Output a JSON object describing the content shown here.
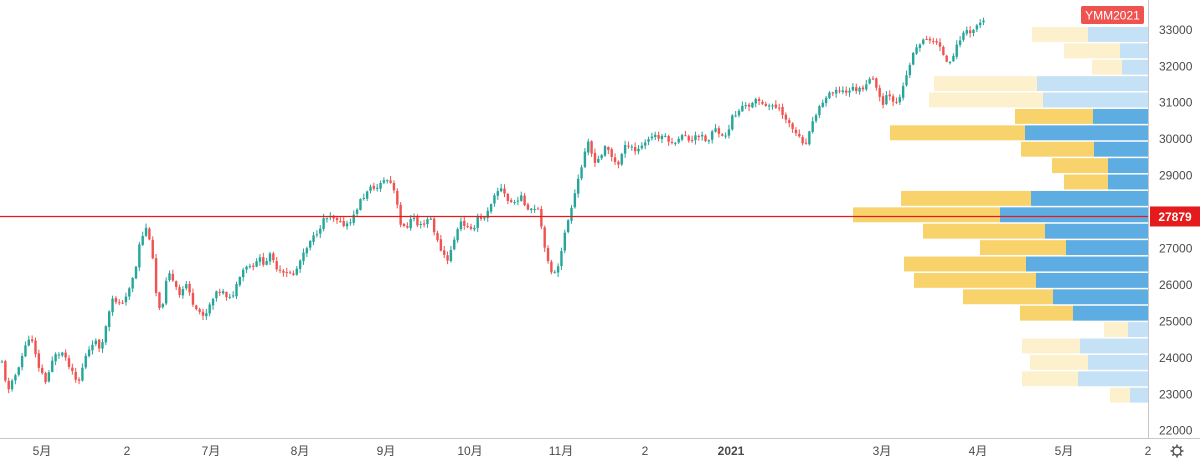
{
  "chart_data": {
    "type": "candlestick",
    "symbol_badge": "YMM2021",
    "last_price_label": "27879",
    "last_price": 27879,
    "y_range": [
      21800,
      33600
    ],
    "y_ticks": [
      22000,
      23000,
      24000,
      25000,
      26000,
      27000,
      28000,
      29000,
      30000,
      31000,
      32000,
      33000
    ],
    "x_labels": [
      {
        "label": "5月",
        "bold": false
      },
      {
        "label": "2",
        "bold": false
      },
      {
        "label": "7月",
        "bold": false
      },
      {
        "label": "8月",
        "bold": false
      },
      {
        "label": "9月",
        "bold": false
      },
      {
        "label": "10月",
        "bold": false
      },
      {
        "label": "11月",
        "bold": false
      },
      {
        "label": "2",
        "bold": false
      },
      {
        "label": "2021",
        "bold": true
      },
      {
        "label": "3月",
        "bold": false
      },
      {
        "label": "4月",
        "bold": false
      },
      {
        "label": "5月",
        "bold": false
      },
      {
        "label": "2",
        "bold": false
      }
    ],
    "close_path": [
      [
        0,
        24150
      ],
      [
        8,
        23050
      ],
      [
        15,
        23500
      ],
      [
        22,
        24050
      ],
      [
        30,
        24650
      ],
      [
        38,
        23800
      ],
      [
        46,
        23350
      ],
      [
        54,
        24050
      ],
      [
        62,
        24150
      ],
      [
        70,
        23700
      ],
      [
        78,
        23250
      ],
      [
        86,
        24100
      ],
      [
        94,
        24500
      ],
      [
        100,
        24250
      ],
      [
        106,
        24850
      ],
      [
        112,
        25700
      ],
      [
        118,
        25400
      ],
      [
        124,
        25600
      ],
      [
        130,
        25900
      ],
      [
        136,
        26500
      ],
      [
        140,
        27200
      ],
      [
        146,
        27550
      ],
      [
        150,
        27250
      ],
      [
        154,
        26400
      ],
      [
        158,
        25200
      ],
      [
        163,
        25550
      ],
      [
        168,
        26350
      ],
      [
        174,
        26100
      ],
      [
        180,
        25750
      ],
      [
        186,
        26050
      ],
      [
        192,
        25550
      ],
      [
        198,
        25350
      ],
      [
        204,
        25050
      ],
      [
        210,
        25450
      ],
      [
        216,
        25750
      ],
      [
        222,
        25850
      ],
      [
        228,
        25550
      ],
      [
        234,
        25800
      ],
      [
        240,
        26300
      ],
      [
        246,
        26550
      ],
      [
        252,
        26500
      ],
      [
        258,
        26750
      ],
      [
        264,
        26600
      ],
      [
        270,
        26800
      ],
      [
        276,
        26500
      ],
      [
        282,
        26400
      ],
      [
        288,
        26350
      ],
      [
        294,
        26250
      ],
      [
        300,
        26650
      ],
      [
        306,
        26950
      ],
      [
        312,
        27250
      ],
      [
        318,
        27500
      ],
      [
        324,
        27800
      ],
      [
        330,
        27850
      ],
      [
        336,
        27750
      ],
      [
        342,
        27650
      ],
      [
        348,
        27700
      ],
      [
        354,
        27900
      ],
      [
        360,
        28300
      ],
      [
        366,
        28500
      ],
      [
        372,
        28700
      ],
      [
        378,
        28650
      ],
      [
        384,
        28900
      ],
      [
        390,
        28850
      ],
      [
        396,
        28500
      ],
      [
        400,
        27700
      ],
      [
        406,
        27500
      ],
      [
        412,
        27950
      ],
      [
        418,
        27600
      ],
      [
        424,
        27700
      ],
      [
        430,
        27900
      ],
      [
        436,
        27300
      ],
      [
        442,
        26900
      ],
      [
        448,
        26700
      ],
      [
        454,
        27200
      ],
      [
        460,
        27800
      ],
      [
        466,
        27600
      ],
      [
        472,
        27450
      ],
      [
        478,
        27900
      ],
      [
        484,
        27800
      ],
      [
        490,
        28100
      ],
      [
        496,
        28500
      ],
      [
        502,
        28700
      ],
      [
        508,
        28300
      ],
      [
        514,
        28250
      ],
      [
        520,
        28450
      ],
      [
        526,
        28150
      ],
      [
        532,
        28100
      ],
      [
        538,
        28150
      ],
      [
        542,
        27500
      ],
      [
        548,
        26600
      ],
      [
        552,
        26250
      ],
      [
        558,
        26550
      ],
      [
        564,
        27300
      ],
      [
        570,
        28000
      ],
      [
        576,
        28700
      ],
      [
        582,
        29300
      ],
      [
        588,
        29900
      ],
      [
        594,
        29400
      ],
      [
        600,
        29500
      ],
      [
        606,
        29800
      ],
      [
        612,
        29500
      ],
      [
        618,
        29300
      ],
      [
        624,
        29750
      ],
      [
        630,
        29900
      ],
      [
        636,
        29650
      ],
      [
        642,
        29850
      ],
      [
        648,
        30000
      ],
      [
        654,
        30150
      ],
      [
        660,
        30000
      ],
      [
        666,
        30100
      ],
      [
        672,
        29850
      ],
      [
        678,
        30050
      ],
      [
        684,
        30100
      ],
      [
        690,
        29950
      ],
      [
        696,
        30150
      ],
      [
        702,
        30050
      ],
      [
        708,
        29900
      ],
      [
        714,
        30300
      ],
      [
        720,
        30200
      ],
      [
        726,
        30050
      ],
      [
        732,
        30600
      ],
      [
        738,
        30700
      ],
      [
        744,
        31000
      ],
      [
        750,
        30900
      ],
      [
        756,
        31050
      ],
      [
        762,
        31000
      ],
      [
        768,
        30950
      ],
      [
        774,
        30850
      ],
      [
        780,
        30900
      ],
      [
        786,
        30500
      ],
      [
        792,
        30300
      ],
      [
        798,
        30100
      ],
      [
        804,
        29750
      ],
      [
        810,
        30200
      ],
      [
        816,
        30700
      ],
      [
        822,
        31000
      ],
      [
        828,
        31200
      ],
      [
        834,
        31250
      ],
      [
        840,
        31350
      ],
      [
        846,
        31300
      ],
      [
        852,
        31400
      ],
      [
        858,
        31350
      ],
      [
        864,
        31450
      ],
      [
        870,
        31700
      ],
      [
        876,
        31500
      ],
      [
        882,
        30950
      ],
      [
        888,
        31300
      ],
      [
        894,
        31050
      ],
      [
        900,
        31100
      ],
      [
        906,
        31700
      ],
      [
        912,
        32250
      ],
      [
        918,
        32600
      ],
      [
        924,
        32700
      ],
      [
        930,
        32750
      ],
      [
        936,
        32650
      ],
      [
        942,
        32400
      ],
      [
        948,
        32100
      ],
      [
        954,
        32350
      ],
      [
        960,
        32750
      ],
      [
        966,
        33000
      ],
      [
        972,
        32950
      ],
      [
        978,
        33150
      ],
      [
        984,
        33300
      ]
    ],
    "volume_profile": [
      {
        "low": 22750,
        "high": 23200,
        "up": 18,
        "down": 20,
        "highlight": false
      },
      {
        "low": 23200,
        "high": 23650,
        "up": 70,
        "down": 56,
        "highlight": false
      },
      {
        "low": 23650,
        "high": 24100,
        "up": 60,
        "down": 58,
        "highlight": false
      },
      {
        "low": 24100,
        "high": 24550,
        "up": 68,
        "down": 58,
        "highlight": false
      },
      {
        "low": 24550,
        "high": 25000,
        "up": 20,
        "down": 24,
        "highlight": false
      },
      {
        "low": 25000,
        "high": 25450,
        "up": 75,
        "down": 53,
        "highlight": true
      },
      {
        "low": 25450,
        "high": 25900,
        "up": 95,
        "down": 90,
        "highlight": true
      },
      {
        "low": 25900,
        "high": 26350,
        "up": 112,
        "down": 122,
        "highlight": true
      },
      {
        "low": 26350,
        "high": 26800,
        "up": 122,
        "down": 122,
        "highlight": true
      },
      {
        "low": 26800,
        "high": 27250,
        "up": 82,
        "down": 86,
        "highlight": true
      },
      {
        "low": 27250,
        "high": 27700,
        "up": 103,
        "down": 122,
        "highlight": true
      },
      {
        "low": 27700,
        "high": 28150,
        "up": 148,
        "down": 147,
        "highlight": true
      },
      {
        "low": 28150,
        "high": 28600,
        "up": 117,
        "down": 130,
        "highlight": true
      },
      {
        "low": 28600,
        "high": 29050,
        "up": 40,
        "down": 44,
        "highlight": true
      },
      {
        "low": 29050,
        "high": 29500,
        "up": 40,
        "down": 56,
        "highlight": true
      },
      {
        "low": 29500,
        "high": 29950,
        "up": 54,
        "down": 73,
        "highlight": true
      },
      {
        "low": 29950,
        "high": 30400,
        "up": 123,
        "down": 135,
        "highlight": true
      },
      {
        "low": 30400,
        "high": 30850,
        "up": 55,
        "down": 78,
        "highlight": true
      },
      {
        "low": 30850,
        "high": 31300,
        "up": 105,
        "down": 114,
        "highlight": false
      },
      {
        "low": 31300,
        "high": 31750,
        "up": 111,
        "down": 103,
        "highlight": false
      },
      {
        "low": 31750,
        "high": 32200,
        "up": 26,
        "down": 30,
        "highlight": false
      },
      {
        "low": 32200,
        "high": 32650,
        "up": 28,
        "down": 56,
        "highlight": false
      },
      {
        "low": 32650,
        "high": 33100,
        "up": 60,
        "down": 56,
        "highlight": false
      }
    ]
  },
  "colors": {
    "up": "#26a69a",
    "down": "#ef5350",
    "last_price_line": "#e41a1c",
    "last_price_badge": "#e41a1c",
    "symbol_badge": "#ef5350",
    "vp_up": "#5dade2",
    "vp_down": "#f8d36b",
    "vp_up_light": "#c4e1f5",
    "vp_down_light": "#fdf0cd",
    "axis_text": "#4a4a4a",
    "axis_line": "#c8c8c8"
  },
  "icons": {
    "settings": "gear-icon"
  }
}
